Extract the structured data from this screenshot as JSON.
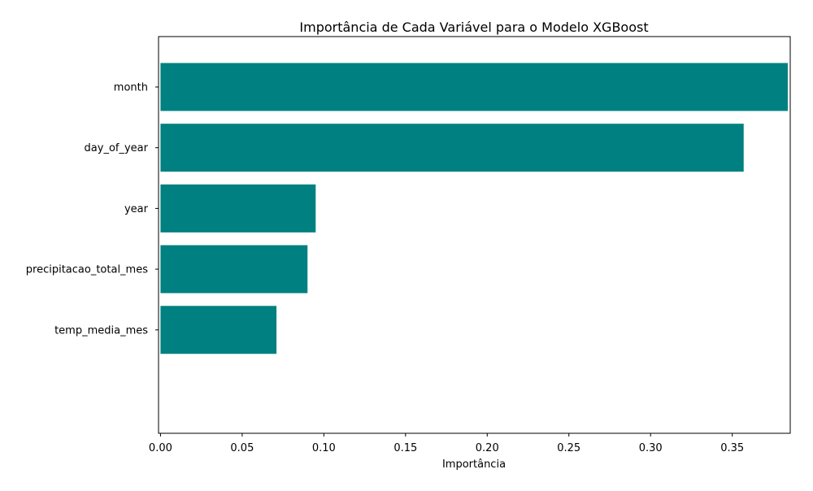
{
  "chart_data": {
    "type": "bar",
    "orientation": "horizontal",
    "title": "Importância de Cada Variável para o Modelo XGBoost",
    "xlabel": "Importância",
    "ylabel": "",
    "categories": [
      "month",
      "day_of_year",
      "year",
      "precipitacao_total_mes",
      "temp_media_mes"
    ],
    "values": [
      0.384,
      0.357,
      0.095,
      0.09,
      0.071
    ],
    "x_ticks": [
      "0.00",
      "0.05",
      "0.10",
      "0.15",
      "0.20",
      "0.25",
      "0.30",
      "0.35"
    ],
    "xlim": [
      -0.0012,
      0.3855
    ],
    "bar_color": "#008080",
    "grid": false,
    "legend": "none"
  }
}
